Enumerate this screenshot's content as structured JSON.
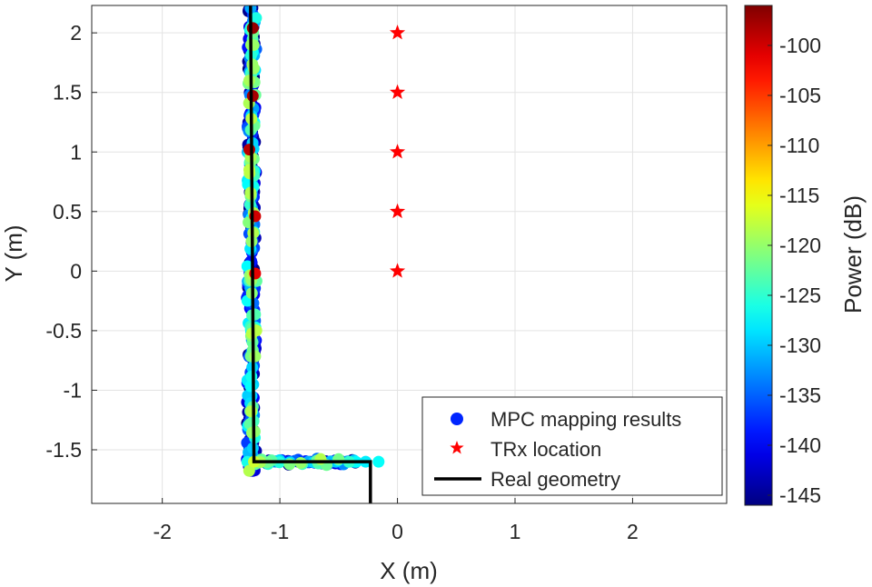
{
  "chart_data": {
    "type": "scatter",
    "xlabel": "X (m)",
    "ylabel": "Y (m)",
    "xlim": [
      -2.6,
      2.8
    ],
    "ylim": [
      -1.95,
      2.23
    ],
    "xticks": [
      -2,
      -1,
      0,
      1,
      2
    ],
    "xtick_labels": [
      "-2",
      "-1",
      "0",
      "1",
      "2"
    ],
    "yticks": [
      -1.5,
      -1,
      -0.5,
      0,
      0.5,
      1,
      1.5,
      2
    ],
    "ytick_labels": [
      "-1.5",
      "-1",
      "-0.5",
      "0",
      "0.5",
      "1",
      "1.5",
      "2"
    ],
    "grid": true,
    "colorbar": {
      "label": "Power (dB)",
      "range": [
        -146,
        -96
      ],
      "ticks": [
        -145,
        -140,
        -135,
        -130,
        -125,
        -120,
        -115,
        -110,
        -105,
        -100
      ],
      "tick_labels": [
        "-145",
        "-140",
        "-135",
        "-130",
        "-125",
        "-120",
        "-115",
        "-110",
        "-105",
        "-100"
      ],
      "colormap": "jet"
    },
    "series": [
      {
        "name": "MPC mapping results",
        "kind": "scatter-colored",
        "marker": "circle",
        "generator": {
          "vertical_segment": {
            "x_center": -1.24,
            "x_spread": 0.045,
            "y_range": [
              -1.68,
              2.22
            ],
            "count": 320
          },
          "horizontal_segment": {
            "y_center": -1.6,
            "y_spread": 0.03,
            "x_range": [
              -1.3,
              -0.35
            ],
            "count": 80
          },
          "power_range": [
            -146,
            -118
          ],
          "seed": 7
        },
        "highlight_points": [
          {
            "x": -1.23,
            "y": 2.04,
            "power": -97
          },
          {
            "x": -1.23,
            "y": 1.47,
            "power": -98
          },
          {
            "x": -1.26,
            "y": 1.02,
            "power": -99
          },
          {
            "x": -1.21,
            "y": 0.46,
            "power": -100
          },
          {
            "x": -1.21,
            "y": -0.02,
            "power": -101
          },
          {
            "x": -1.26,
            "y": 0.85,
            "power": -118
          },
          {
            "x": -1.26,
            "y": 1.6,
            "power": -119
          },
          {
            "x": -1.24,
            "y": 0.25,
            "power": -120
          },
          {
            "x": -1.22,
            "y": -1.6,
            "power": -117
          },
          {
            "x": -0.27,
            "y": -1.6,
            "power": -128
          },
          {
            "x": -0.16,
            "y": -1.6,
            "power": -127
          }
        ]
      },
      {
        "name": "TRx location",
        "kind": "marker",
        "marker": "star",
        "color": "#ff0000",
        "x": [
          0,
          0,
          0,
          0,
          0
        ],
        "y": [
          2,
          1.5,
          1,
          0.5,
          0
        ]
      },
      {
        "name": "Real geometry",
        "kind": "line",
        "color": "#000000",
        "x": [
          -1.25,
          -1.22,
          -1.22,
          -0.23,
          -0.23
        ],
        "y": [
          2.23,
          -1.6,
          -1.6,
          -1.6,
          -1.95
        ]
      }
    ],
    "legend": {
      "position": "bottom-right",
      "entries": [
        "MPC mapping results",
        "TRx location",
        "Real geometry"
      ],
      "marker_colors": [
        "#0025ff",
        "#ff0000",
        "#000000"
      ]
    }
  }
}
